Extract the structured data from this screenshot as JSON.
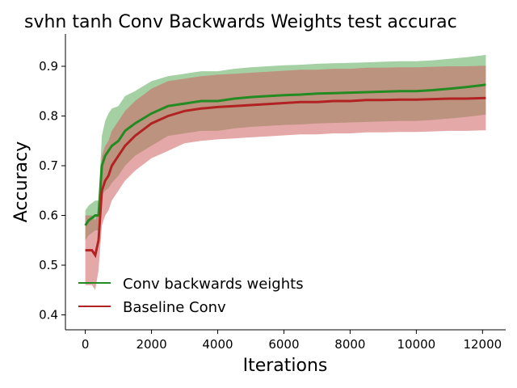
{
  "chart_data": {
    "type": "line",
    "title": "svhn tanh Conv Backwards Weights test accurac",
    "xlabel": "Iterations",
    "ylabel": "Accuracy",
    "xlim": [
      -600,
      12700
    ],
    "ylim": [
      0.37,
      0.965
    ],
    "x_ticks": [
      0,
      2000,
      4000,
      6000,
      8000,
      10000,
      12000
    ],
    "x_tick_labels": [
      "0",
      "2000",
      "4000",
      "6000",
      "8000",
      "10000",
      "12000"
    ],
    "y_ticks": [
      0.4,
      0.5,
      0.6,
      0.7,
      0.8,
      0.9
    ],
    "y_tick_labels": [
      "0.4",
      "0.5",
      "0.6",
      "0.7",
      "0.8",
      "0.9"
    ],
    "grid": false,
    "legend_position": "lower-left",
    "x": [
      0,
      100,
      200,
      300,
      400,
      500,
      600,
      700,
      800,
      1000,
      1200,
      1500,
      2000,
      2500,
      3000,
      3500,
      4000,
      4500,
      5000,
      5500,
      6000,
      6500,
      7000,
      7500,
      8000,
      8500,
      9000,
      9500,
      10000,
      10500,
      11000,
      11500,
      12000,
      12100
    ],
    "series": [
      {
        "name": "Conv backwards weights",
        "color": "#228b22",
        "band_color": "#5aaa5a",
        "values": [
          0.58,
          0.59,
          0.595,
          0.6,
          0.6,
          0.7,
          0.72,
          0.73,
          0.74,
          0.75,
          0.77,
          0.785,
          0.805,
          0.82,
          0.825,
          0.83,
          0.83,
          0.835,
          0.838,
          0.84,
          0.842,
          0.843,
          0.845,
          0.846,
          0.847,
          0.848,
          0.849,
          0.85,
          0.85,
          0.852,
          0.855,
          0.858,
          0.862,
          0.863
        ],
        "band_half_width": [
          0.03,
          0.03,
          0.03,
          0.03,
          0.03,
          0.06,
          0.07,
          0.075,
          0.075,
          0.07,
          0.07,
          0.065,
          0.065,
          0.06,
          0.06,
          0.06,
          0.06,
          0.06,
          0.06,
          0.06,
          0.06,
          0.06,
          0.06,
          0.06,
          0.06,
          0.06,
          0.06,
          0.06,
          0.06,
          0.06,
          0.06,
          0.06,
          0.06,
          0.06
        ]
      },
      {
        "name": "Baseline Conv",
        "color": "#b22222",
        "band_color": "#d06060",
        "values": [
          0.53,
          0.53,
          0.53,
          0.52,
          0.55,
          0.65,
          0.67,
          0.68,
          0.7,
          0.72,
          0.74,
          0.76,
          0.785,
          0.8,
          0.81,
          0.815,
          0.818,
          0.82,
          0.822,
          0.824,
          0.826,
          0.828,
          0.828,
          0.83,
          0.83,
          0.832,
          0.832,
          0.833,
          0.833,
          0.834,
          0.835,
          0.835,
          0.836,
          0.836
        ],
        "band_half_width": [
          0.07,
          0.07,
          0.07,
          0.07,
          0.06,
          0.07,
          0.07,
          0.07,
          0.07,
          0.07,
          0.07,
          0.07,
          0.07,
          0.07,
          0.065,
          0.065,
          0.065,
          0.065,
          0.065,
          0.065,
          0.065,
          0.065,
          0.065,
          0.065,
          0.065,
          0.065,
          0.065,
          0.065,
          0.065,
          0.065,
          0.065,
          0.065,
          0.065,
          0.065
        ]
      }
    ]
  }
}
